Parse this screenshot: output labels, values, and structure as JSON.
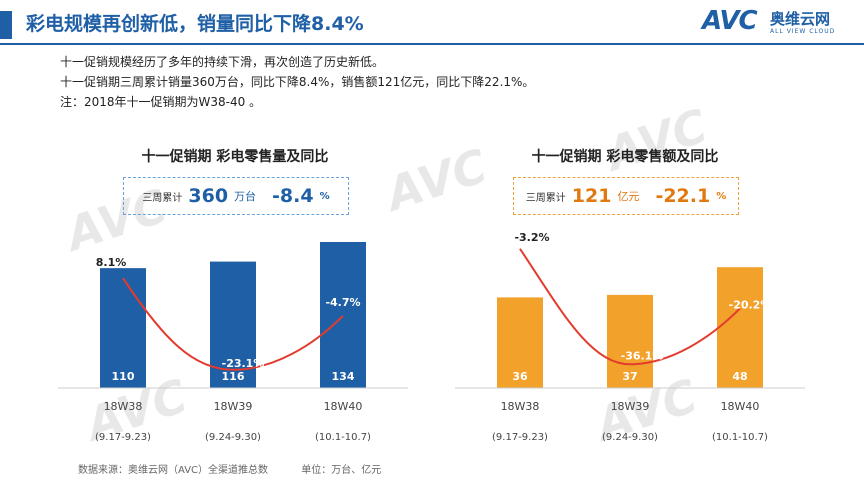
{
  "header": {
    "title": "彩电规模再创新低，销量同比下降8.4%",
    "logo_mark": "AVC",
    "logo_name": "奥维云网",
    "logo_tagline": "ALL VIEW CLOUD"
  },
  "intro": {
    "lines": [
      "十一促销规模经历了多年的持续下滑，再次创造了历史新低。",
      "十一促销期三周累计销量360万台，同比下降8.4%，销售额121亿元，同比下降22.1%。",
      "注：2018年十一促销期为W38-40 。"
    ]
  },
  "summary": {
    "volume": {
      "label": "三周累计",
      "value": "360",
      "unit": "万台",
      "change": "-8.4",
      "change_unit": "%"
    },
    "sales": {
      "label": "三周累计",
      "value": "121",
      "unit": "亿元",
      "change": "-22.1",
      "change_unit": "%"
    }
  },
  "colors": {
    "blue": "#1f5fa6",
    "orange": "#f2a12a",
    "line": "#e33b2e"
  },
  "chart_data": [
    {
      "type": "bar",
      "title": "十一促销期  彩电零售量及同比",
      "categories": [
        "18W38",
        "18W39",
        "18W40"
      ],
      "category_ranges": [
        "(9.17-9.23)",
        "(9.24-9.30)",
        "(10.1-10.7)"
      ],
      "series": [
        {
          "values": [
            110,
            116,
            134
          ],
          "kind": "bar"
        },
        {
          "values": [
            8.1,
            -23.1,
            -4.7
          ],
          "kind": "line",
          "labels": [
            "8.1%",
            "-23.1%",
            "-4.7%"
          ]
        }
      ],
      "ylim": [
        0,
        145
      ],
      "line_ylim": [
        -30,
        15
      ]
    },
    {
      "type": "bar",
      "title": "十一促销期  彩电零售额及同比",
      "categories": [
        "18W38",
        "18W39",
        "18W40"
      ],
      "category_ranges": [
        "(9.17-9.23)",
        "(9.24-9.30)",
        "(10.1-10.7)"
      ],
      "series": [
        {
          "values": [
            36,
            37,
            48
          ],
          "kind": "bar"
        },
        {
          "values": [
            -3.2,
            -36.1,
            -20.2
          ],
          "kind": "line",
          "labels": [
            "-3.2%",
            "-36.1%",
            "-20.2%"
          ]
        }
      ],
      "ylim": [
        0,
        60
      ],
      "line_ylim": [
        -42,
        5
      ]
    }
  ],
  "footer": {
    "source": "数据来源：奥维云网（AVC）全渠道推总数",
    "unit": "单位：万台、亿元"
  }
}
